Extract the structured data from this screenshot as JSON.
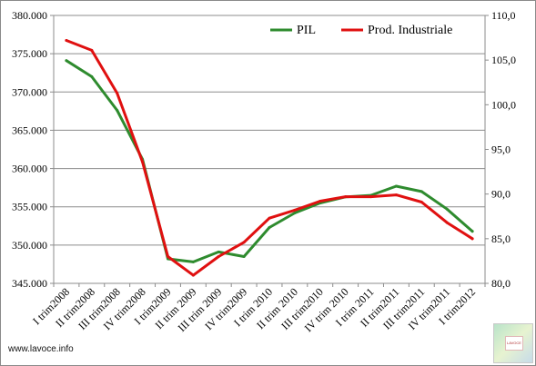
{
  "chart_data": {
    "type": "line",
    "categories": [
      "I trim2008",
      "II trim2008",
      "III trim2008",
      "IV trim2008",
      "I trim2009",
      "II trim 2009",
      "III trim 2009",
      "IV trim2009",
      "I trim 2010",
      "II trim 2010",
      "III trim2010",
      "IV trim 2010",
      "I trim 2011",
      "II trim2011",
      "III trim2011",
      "IV trim2011",
      "I trim2012"
    ],
    "y_left": {
      "min": 345000,
      "max": 380000,
      "ticks": [
        "345.000",
        "350.000",
        "355.000",
        "360.000",
        "365.000",
        "370.000",
        "375.000",
        "380.000"
      ]
    },
    "y_right": {
      "min": 80,
      "max": 110,
      "ticks": [
        "80,0",
        "85,0",
        "90,0",
        "95,0",
        "100,0",
        "105,0",
        "110,0"
      ]
    },
    "grid": true,
    "legend_position": "top-right",
    "series": [
      {
        "name": "PIL",
        "axis": "left",
        "color": "#2e8b2e",
        "values": [
          374100,
          372000,
          367600,
          361200,
          348200,
          347800,
          349100,
          348500,
          352300,
          354200,
          355500,
          356300,
          356500,
          357700,
          357000,
          354700,
          351800
        ]
      },
      {
        "name": "Prod. Industriale",
        "axis": "right",
        "color": "#e01010",
        "values": [
          107.2,
          106.1,
          101.3,
          93.6,
          83.0,
          80.9,
          83.0,
          84.6,
          87.3,
          88.2,
          89.2,
          89.7,
          89.7,
          89.9,
          89.1,
          86.8,
          85.0
        ]
      }
    ]
  },
  "footer": {
    "source_text": "www.lavoce.info",
    "logo_text": "LAVOCE"
  }
}
